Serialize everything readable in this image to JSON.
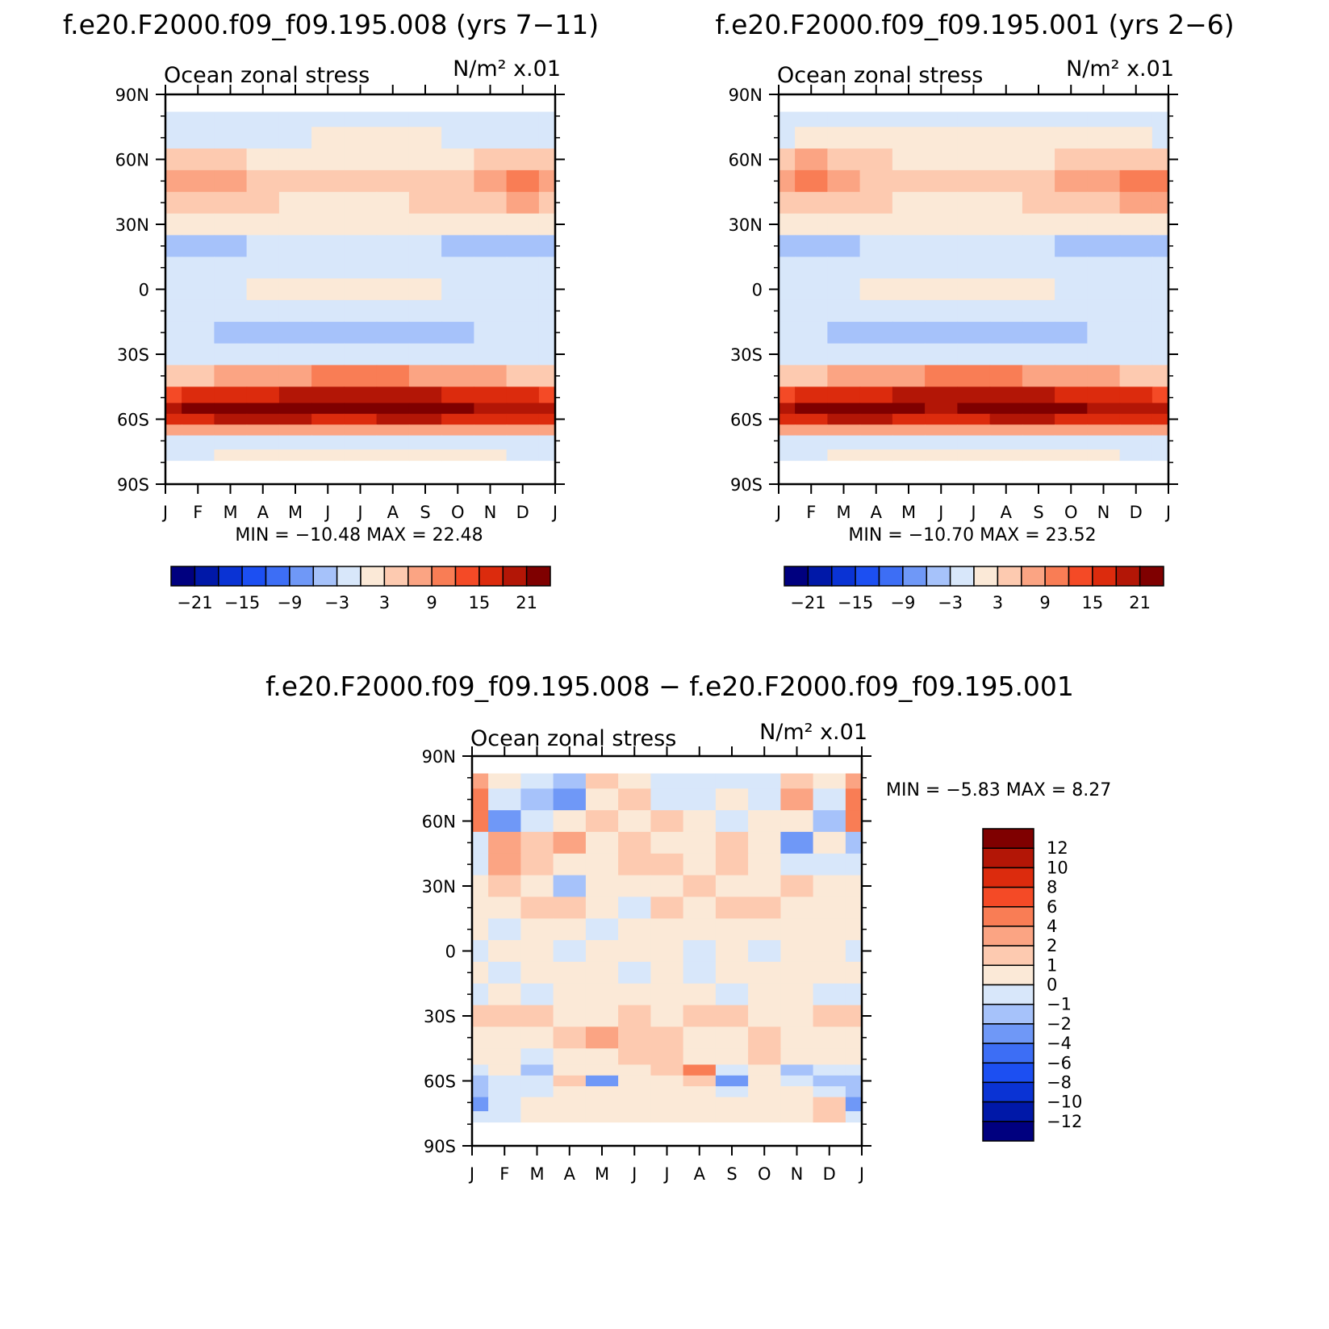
{
  "chart_data": [
    {
      "type": "heatmap",
      "title": "f.e20.F2000.f09_f09.195.008 (yrs 7−11)",
      "left_label": "Ocean zonal stress",
      "right_label": "N/m² x.01",
      "x_ticks": [
        "J",
        "F",
        "M",
        "A",
        "M",
        "J",
        "J",
        "A",
        "S",
        "O",
        "N",
        "D",
        "J"
      ],
      "y_ticks": [
        "90N",
        "60N",
        "30N",
        "0",
        "30S",
        "60S",
        "90S"
      ],
      "x": [
        "Jan",
        "Feb",
        "Mar",
        "Apr",
        "May",
        "Jun",
        "Jul",
        "Aug",
        "Sep",
        "Oct",
        "Nov",
        "Dec",
        "Jan"
      ],
      "y_lat": [
        80,
        70,
        60,
        50,
        40,
        30,
        20,
        10,
        0,
        -10,
        -20,
        -30,
        -40,
        -50,
        -55,
        -60,
        -65,
        -70,
        -78
      ],
      "values": [
        [
          -2,
          -2,
          -1,
          -1,
          -1,
          -1,
          -1,
          -1,
          -1,
          -1,
          -1,
          -2,
          -2
        ],
        [
          -1,
          -1,
          -1,
          -1,
          -1,
          0,
          0,
          0,
          0,
          -1,
          -1,
          -1,
          -1
        ],
        [
          4,
          5,
          4,
          2,
          1,
          1,
          1,
          1,
          2,
          2,
          3,
          4,
          4
        ],
        [
          7,
          8,
          6,
          4,
          3,
          3,
          3,
          3,
          4,
          5,
          7,
          9,
          8
        ],
        [
          4,
          5,
          4,
          3,
          2,
          2,
          2,
          2,
          3,
          4,
          5,
          6,
          5
        ],
        [
          0,
          0,
          0,
          0,
          0,
          0,
          0,
          0,
          0,
          0,
          0,
          0,
          0
        ],
        [
          -5,
          -5,
          -4,
          -3,
          -2,
          -2,
          -2,
          -2,
          -3,
          -4,
          -5,
          -6,
          -5
        ],
        [
          -2,
          -2,
          -1,
          -1,
          -1,
          -1,
          -1,
          -1,
          -1,
          -1,
          -2,
          -2,
          -2
        ],
        [
          -1,
          -1,
          -1,
          0,
          0,
          1,
          1,
          1,
          0,
          -1,
          -1,
          -1,
          -1
        ],
        [
          -1,
          -1,
          -1,
          -1,
          -1,
          -2,
          -2,
          -1,
          -1,
          -1,
          -1,
          -1,
          -1
        ],
        [
          -3,
          -3,
          -4,
          -4,
          -5,
          -6,
          -6,
          -6,
          -5,
          -4,
          -3,
          -3,
          -3
        ],
        [
          -2,
          -2,
          -2,
          -2,
          -2,
          -2,
          -2,
          -2,
          -2,
          -2,
          -2,
          -2,
          -2
        ],
        [
          4,
          5,
          6,
          7,
          8,
          9,
          10,
          9,
          8,
          7,
          6,
          5,
          4
        ],
        [
          14,
          15,
          16,
          17,
          18,
          19,
          20,
          19,
          18,
          17,
          16,
          15,
          14
        ],
        [
          20,
          21,
          22,
          22,
          22,
          21,
          21,
          22,
          22,
          21,
          20,
          20,
          20
        ],
        [
          16,
          17,
          18,
          19,
          18,
          17,
          17,
          18,
          18,
          17,
          16,
          16,
          16
        ],
        [
          6,
          6,
          6,
          6,
          6,
          6,
          6,
          6,
          6,
          6,
          6,
          6,
          6
        ],
        [
          -1,
          -1,
          -1,
          -1,
          -1,
          -1,
          -1,
          -1,
          -1,
          -1,
          -1,
          -1,
          -1
        ],
        [
          -1,
          -1,
          0,
          0,
          0,
          0,
          0,
          0,
          0,
          0,
          0,
          -1,
          -1
        ]
      ],
      "min_label": "MIN = −10.48 MAX = 22.48",
      "min": -10.48,
      "max": 22.48,
      "colorbar": {
        "orientation": "horizontal",
        "levels": [
          -24,
          -21,
          -18,
          -15,
          -12,
          -9,
          -6,
          -3,
          0,
          3,
          6,
          9,
          12,
          15,
          18,
          21,
          24
        ],
        "labels": [
          "−21",
          "−15",
          "−9",
          "−3",
          "3",
          "9",
          "15",
          "21"
        ]
      }
    },
    {
      "type": "heatmap",
      "title": "f.e20.F2000.f09_f09.195.001 (yrs 2−6)",
      "left_label": "Ocean zonal stress",
      "right_label": "N/m² x.01",
      "x_ticks": [
        "J",
        "F",
        "M",
        "A",
        "M",
        "J",
        "J",
        "A",
        "S",
        "O",
        "N",
        "D",
        "J"
      ],
      "y_ticks": [
        "90N",
        "60N",
        "30N",
        "0",
        "30S",
        "60S",
        "90S"
      ],
      "x": [
        "Jan",
        "Feb",
        "Mar",
        "Apr",
        "May",
        "Jun",
        "Jul",
        "Aug",
        "Sep",
        "Oct",
        "Nov",
        "Dec",
        "Jan"
      ],
      "y_lat": [
        80,
        70,
        60,
        50,
        40,
        30,
        20,
        10,
        0,
        -10,
        -20,
        -30,
        -40,
        -50,
        -55,
        -60,
        -65,
        -70,
        -78
      ],
      "values": [
        [
          -3,
          -2,
          -1,
          -1,
          -1,
          -1,
          -1,
          -1,
          -1,
          -1,
          -2,
          -2,
          -3
        ],
        [
          -1,
          0,
          1,
          1,
          0,
          0,
          0,
          0,
          0,
          0,
          1,
          0,
          -1
        ],
        [
          5,
          6,
          5,
          3,
          2,
          1,
          1,
          2,
          2,
          3,
          4,
          5,
          5
        ],
        [
          8,
          9,
          7,
          4,
          3,
          3,
          3,
          3,
          4,
          6,
          8,
          9,
          9
        ],
        [
          5,
          5,
          4,
          3,
          2,
          2,
          2,
          2,
          3,
          4,
          5,
          6,
          6
        ],
        [
          0,
          0,
          0,
          0,
          0,
          0,
          0,
          0,
          0,
          0,
          0,
          0,
          0
        ],
        [
          -5,
          -5,
          -4,
          -3,
          -2,
          -2,
          -2,
          -2,
          -3,
          -4,
          -5,
          -6,
          -6
        ],
        [
          -2,
          -2,
          -1,
          -1,
          -1,
          -1,
          -1,
          -1,
          -1,
          -1,
          -2,
          -2,
          -2
        ],
        [
          -1,
          -1,
          -1,
          0,
          0,
          1,
          1,
          1,
          0,
          -1,
          -1,
          -1,
          -1
        ],
        [
          -1,
          -1,
          -1,
          -1,
          -1,
          -2,
          -2,
          -1,
          -1,
          -1,
          -1,
          -1,
          -1
        ],
        [
          -3,
          -3,
          -4,
          -5,
          -5,
          -6,
          -6,
          -6,
          -5,
          -4,
          -3,
          -3,
          -3
        ],
        [
          -2,
          -2,
          -2,
          -2,
          -2,
          -2,
          -2,
          -2,
          -2,
          -2,
          -2,
          -2,
          -2
        ],
        [
          4,
          5,
          6,
          7,
          8,
          9,
          10,
          9,
          8,
          7,
          6,
          5,
          4
        ],
        [
          14,
          15,
          16,
          17,
          18,
          19,
          20,
          19,
          18,
          17,
          16,
          15,
          14
        ],
        [
          20,
          21,
          22,
          22,
          21,
          20,
          21,
          22,
          23,
          21,
          20,
          20,
          20
        ],
        [
          16,
          17,
          18,
          18,
          17,
          17,
          17,
          18,
          19,
          17,
          16,
          16,
          16
        ],
        [
          6,
          6,
          6,
          6,
          6,
          6,
          6,
          6,
          6,
          6,
          6,
          6,
          6
        ],
        [
          -1,
          -1,
          -1,
          -1,
          -1,
          -1,
          -1,
          -1,
          -1,
          -1,
          -1,
          -1,
          -1
        ],
        [
          -1,
          -1,
          0,
          0,
          0,
          0,
          0,
          0,
          0,
          0,
          0,
          -1,
          -1
        ]
      ],
      "min_label": "MIN = −10.70 MAX = 23.52",
      "min": -10.7,
      "max": 23.52,
      "colorbar": {
        "orientation": "horizontal",
        "levels": [
          -24,
          -21,
          -18,
          -15,
          -12,
          -9,
          -6,
          -3,
          0,
          3,
          6,
          9,
          12,
          15,
          18,
          21,
          24
        ],
        "labels": [
          "−21",
          "−15",
          "−9",
          "−3",
          "3",
          "9",
          "15",
          "21"
        ]
      }
    },
    {
      "type": "heatmap",
      "title": "f.e20.F2000.f09_f09.195.008 − f.e20.F2000.f09_f09.195.001",
      "left_label": "Ocean zonal stress",
      "right_label": "N/m² x.01",
      "x_ticks": [
        "J",
        "F",
        "M",
        "A",
        "M",
        "J",
        "J",
        "A",
        "S",
        "O",
        "N",
        "D",
        "J"
      ],
      "y_ticks": [
        "90N",
        "60N",
        "30N",
        "0",
        "30S",
        "60S",
        "90S"
      ],
      "x": [
        "Jan",
        "Feb",
        "Mar",
        "Apr",
        "May",
        "Jun",
        "Jul",
        "Aug",
        "Sep",
        "Oct",
        "Nov",
        "Dec",
        "Jan"
      ],
      "y_lat": [
        80,
        70,
        60,
        50,
        40,
        30,
        20,
        10,
        0,
        -10,
        -20,
        -30,
        -40,
        -50,
        -55,
        -60,
        -65,
        -70,
        -78
      ],
      "values": [
        [
          3,
          0,
          -1,
          -2,
          1,
          0,
          -1,
          -1,
          -1,
          -1,
          1,
          0,
          3
        ],
        [
          5,
          -1,
          -2,
          -3,
          0,
          1,
          -1,
          -1,
          0,
          -1,
          2,
          -1,
          5
        ],
        [
          4,
          -4,
          -1,
          0,
          1,
          0,
          1,
          0,
          -1,
          0,
          0,
          -2,
          4
        ],
        [
          -1,
          2,
          1,
          3,
          0,
          1,
          0,
          0,
          1,
          0,
          -3,
          0,
          -2
        ],
        [
          -1,
          3,
          1,
          0,
          0,
          1,
          1,
          0,
          1,
          0,
          -1,
          -1,
          -1
        ],
        [
          0,
          1,
          0,
          -2,
          0,
          0,
          0,
          1,
          0,
          0,
          1,
          0,
          0
        ],
        [
          0,
          0,
          1,
          1,
          0,
          -1,
          1,
          0,
          1,
          1,
          0,
          0,
          0
        ],
        [
          0,
          -1,
          0,
          0,
          -1,
          0,
          0,
          0,
          0,
          0,
          0,
          0,
          0
        ],
        [
          -1,
          0,
          0,
          -1,
          0,
          0,
          0,
          -1,
          0,
          -1,
          0,
          0,
          -1
        ],
        [
          0,
          -1,
          0,
          0,
          0,
          -1,
          0,
          -1,
          0,
          0,
          0,
          0,
          0
        ],
        [
          -1,
          0,
          -1,
          0,
          0,
          0,
          0,
          0,
          -1,
          0,
          0,
          -1,
          -1
        ],
        [
          1,
          1,
          1,
          0,
          0,
          1,
          0,
          1,
          1,
          0,
          0,
          1,
          1
        ],
        [
          0,
          0,
          0,
          1,
          2,
          1,
          1,
          0,
          0,
          1,
          0,
          0,
          0
        ],
        [
          0,
          0,
          -1,
          0,
          0,
          1,
          1,
          0,
          0,
          1,
          0,
          0,
          0
        ],
        [
          -1,
          0,
          -2,
          0,
          0,
          0,
          1,
          4,
          -1,
          0,
          -2,
          -1,
          -1
        ],
        [
          -2,
          -1,
          -1,
          1,
          -3,
          0,
          0,
          1,
          -4,
          0,
          -1,
          -2,
          -2
        ],
        [
          -2,
          -1,
          -1,
          0,
          0,
          0,
          0,
          0,
          -1,
          0,
          0,
          -1,
          -2
        ],
        [
          -3,
          -1,
          0,
          0,
          0,
          0,
          0,
          0,
          0,
          0,
          0,
          1,
          -3
        ],
        [
          -1,
          -1,
          0,
          0,
          0,
          0,
          0,
          0,
          0,
          0,
          0,
          1,
          -1
        ]
      ],
      "min_label": "MIN = −5.83 MAX = 8.27",
      "min": -5.83,
      "max": 8.27,
      "colorbar": {
        "orientation": "vertical",
        "levels": [
          -14,
          -12,
          -10,
          -8,
          -6,
          -4,
          -2,
          -1,
          0,
          1,
          2,
          4,
          6,
          8,
          10,
          12,
          14
        ],
        "labels": [
          "12",
          "10",
          "8",
          "6",
          "4",
          "2",
          "1",
          "0",
          "−1",
          "−2",
          "−4",
          "−6",
          "−8",
          "−10",
          "−12"
        ]
      }
    }
  ],
  "palette": [
    "#00007f",
    "#0018a8",
    "#0a33d4",
    "#1c4ff2",
    "#3d6ef5",
    "#6f98f7",
    "#a6c2fa",
    "#d8e7fa",
    "#fbe9d7",
    "#fdcab0",
    "#fba483",
    "#f97d55",
    "#f44a26",
    "#dc2b0d",
    "#b31606",
    "#7f0000"
  ]
}
